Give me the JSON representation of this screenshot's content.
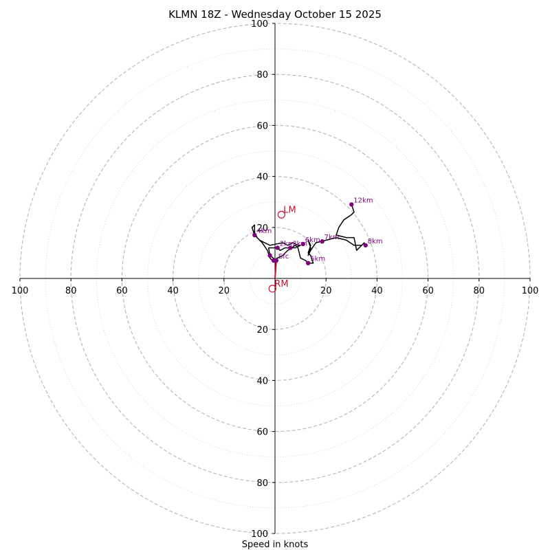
{
  "chart_data": {
    "type": "hodograph",
    "title": "KLMN 18Z - Wednesday October 15 2025",
    "xlabel": "Speed in knots",
    "range": [
      -100,
      100
    ],
    "ring_step_major": 20,
    "ring_step_minor": 10,
    "ticks": {
      "left": [
        "100",
        "80",
        "60",
        "40",
        "20"
      ],
      "right": [
        "20",
        "40",
        "60",
        "80",
        "100"
      ],
      "top": [
        "20",
        "40",
        "60",
        "80",
        "100"
      ],
      "bottom": [
        "20",
        "40",
        "60",
        "80",
        "100"
      ]
    },
    "tick_values": [
      20,
      40,
      60,
      80,
      100
    ],
    "trace": [
      [
        0,
        0
      ],
      [
        0.5,
        7
      ],
      [
        -2,
        9
      ],
      [
        -2.5,
        12
      ],
      [
        1,
        12
      ],
      [
        1.5,
        11.5
      ],
      [
        2,
        11
      ],
      [
        4,
        12
      ],
      [
        6,
        12
      ],
      [
        8,
        12
      ],
      [
        10,
        13
      ],
      [
        9,
        13
      ],
      [
        7,
        14
      ],
      [
        5,
        13
      ],
      [
        3,
        14
      ],
      [
        -2,
        13
      ],
      [
        -6,
        15
      ],
      [
        -8,
        17
      ],
      [
        -9,
        20
      ],
      [
        -8,
        21
      ],
      [
        -8,
        18
      ],
      [
        -7,
        16
      ],
      [
        -5,
        14
      ],
      [
        -3,
        11
      ],
      [
        -2,
        8
      ],
      [
        -1,
        7
      ],
      [
        1,
        8
      ],
      [
        3,
        9
      ],
      [
        4,
        10
      ],
      [
        5,
        11
      ],
      [
        8,
        13
      ],
      [
        9,
        12
      ],
      [
        10,
        8
      ],
      [
        12,
        7
      ],
      [
        13,
        6
      ],
      [
        15,
        6
      ],
      [
        14,
        9
      ],
      [
        13,
        10
      ],
      [
        14,
        13
      ],
      [
        13,
        15
      ],
      [
        14,
        12
      ],
      [
        13,
        9
      ],
      [
        14,
        11
      ],
      [
        16,
        14
      ],
      [
        20,
        15
      ],
      [
        24,
        16
      ],
      [
        28,
        15
      ],
      [
        31,
        13
      ],
      [
        34,
        13
      ],
      [
        35,
        14
      ],
      [
        33,
        12
      ],
      [
        32,
        11
      ],
      [
        31,
        16
      ],
      [
        28,
        16
      ],
      [
        24,
        17
      ],
      [
        25,
        20
      ],
      [
        27,
        23
      ],
      [
        30,
        25
      ],
      [
        31,
        26
      ],
      [
        30,
        29
      ]
    ],
    "markers": [
      {
        "label": "Sfc",
        "u": 0.5,
        "v": 7
      },
      {
        "label": "2km",
        "u": 1,
        "v": 12
      },
      {
        "label": "3km",
        "u": 6,
        "v": 12
      },
      {
        "label": "4km",
        "u": -8,
        "v": 17
      },
      {
        "label": "5km",
        "u": 13,
        "v": 6
      },
      {
        "label": "6km",
        "u": 11,
        "v": 13.5
      },
      {
        "label": "7km",
        "u": 18.5,
        "v": 14.5
      },
      {
        "label": "8km",
        "u": 35.5,
        "v": 13
      },
      {
        "label": "12km",
        "u": 30,
        "v": 29
      }
    ],
    "extra_points": [
      {
        "u": -2,
        "v": 9
      },
      {
        "u": -0.5,
        "v": 7
      }
    ],
    "storm_motion_line": {
      "from": [
        0,
        0
      ],
      "to": [
        0.5,
        7
      ]
    },
    "storm_motions": [
      {
        "label": "LM",
        "u": 2.5,
        "v": 25
      },
      {
        "label": "RM",
        "u": -1,
        "v": -4
      }
    ],
    "colors": {
      "trace": "#000000",
      "markers": "#800080",
      "storm": "#c8102e",
      "grid": "#b5b5b5"
    }
  }
}
